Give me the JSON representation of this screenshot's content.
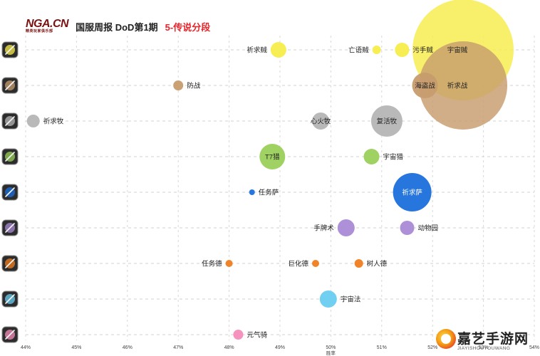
{
  "header": {
    "logo": "NGA.CN",
    "logo_sub": "精英玩家俱乐部",
    "title_main": "国服周报 DoD第1期",
    "title_highlight": "5-传说分段"
  },
  "watermark": {
    "text": "嘉艺手游网",
    "sub": "JIAYISHOUYOUWANG"
  },
  "chart_data": {
    "type": "scatter",
    "subtype": "bubble",
    "xlabel": "胜率",
    "xlim": [
      44,
      54
    ],
    "xticks": [
      "44%",
      "45%",
      "46%",
      "47%",
      "48%",
      "49%",
      "50%",
      "51%",
      "52%",
      "53%",
      "54%"
    ],
    "grid": true,
    "classes": [
      {
        "icon": "rogue-class-icon",
        "color": "#f7ed4a"
      },
      {
        "icon": "warrior-class-icon",
        "color": "#c79c6e"
      },
      {
        "icon": "priest-class-icon",
        "color": "#b5b5b5"
      },
      {
        "icon": "hunter-class-icon",
        "color": "#9ad05a"
      },
      {
        "icon": "shaman-class-icon",
        "color": "#1a6fdc"
      },
      {
        "icon": "druid-class-icon",
        "color": "#a98ad6"
      },
      {
        "icon": "druid2-class-icon",
        "color": "#f07d1e"
      },
      {
        "icon": "mage-class-icon",
        "color": "#69ccf0"
      },
      {
        "icon": "paladin-class-icon",
        "color": "#f58cba"
      }
    ],
    "points": [
      {
        "name": "祈求贼",
        "row": 0,
        "x": 48.97,
        "size": 11,
        "label_side": "left"
      },
      {
        "name": "亡语贼",
        "row": 0,
        "x": 50.9,
        "size": 6,
        "label_side": "left"
      },
      {
        "name": "污手贼",
        "row": 0,
        "x": 51.4,
        "size": 10,
        "label_side": "right"
      },
      {
        "name": "宇宙贼",
        "row": 0,
        "x": 52.6,
        "size": 71,
        "label_side": "center"
      },
      {
        "name": "防战",
        "row": 1,
        "x": 47.0,
        "size": 7,
        "label_side": "right"
      },
      {
        "name": "祈求战",
        "row": 1,
        "x": 52.6,
        "size": 62,
        "label_side": "center"
      },
      {
        "name": "海盗战",
        "row": 1,
        "x": 51.85,
        "size": 18,
        "label_side": "center"
      },
      {
        "name": "祈求牧",
        "row": 2,
        "x": 44.15,
        "size": 9,
        "label_side": "right"
      },
      {
        "name": "心火牧",
        "row": 2,
        "x": 49.8,
        "size": 12,
        "label_side": "center"
      },
      {
        "name": "复活牧",
        "row": 2,
        "x": 51.1,
        "size": 22,
        "label_side": "center"
      },
      {
        "name": "T7猎",
        "row": 3,
        "x": 48.85,
        "size": 18,
        "label_side": "center"
      },
      {
        "name": "宇宙猎",
        "row": 3,
        "x": 50.8,
        "size": 11,
        "label_side": "right"
      },
      {
        "name": "任务萨",
        "row": 4,
        "x": 48.45,
        "size": 4,
        "label_side": "right"
      },
      {
        "name": "祈求萨",
        "row": 4,
        "x": 51.6,
        "size": 27,
        "label_side": "center"
      },
      {
        "name": "手牌术",
        "row": 5,
        "x": 50.3,
        "size": 12,
        "label_side": "left"
      },
      {
        "name": "动物园",
        "row": 5,
        "x": 51.5,
        "size": 10,
        "label_side": "right"
      },
      {
        "name": "任务德",
        "row": 6,
        "x": 48.0,
        "size": 5,
        "label_side": "left"
      },
      {
        "name": "巨化德",
        "row": 6,
        "x": 49.7,
        "size": 5,
        "label_side": "left"
      },
      {
        "name": "树人德",
        "row": 6,
        "x": 50.55,
        "size": 6,
        "label_side": "right"
      },
      {
        "name": "宇宙法",
        "row": 7,
        "x": 49.95,
        "size": 12,
        "label_side": "right"
      },
      {
        "name": "元气骑",
        "row": 8,
        "x": 48.18,
        "size": 7,
        "label_side": "right"
      }
    ]
  }
}
